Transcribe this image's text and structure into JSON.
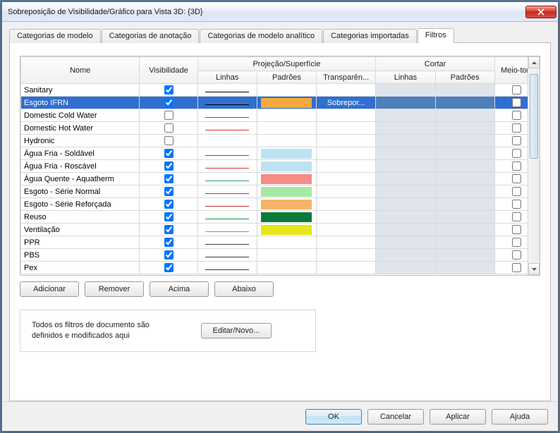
{
  "window": {
    "title": "Sobreposição de Visibilidade/Gráfico para Vista 3D: {3D}"
  },
  "tabs": {
    "items": [
      "Categorias de modelo",
      "Categorias de anotação",
      "Categorias de modelo analítico",
      "Categorias importadas",
      "Filtros"
    ],
    "active_index": 4
  },
  "headers": {
    "name": "Nome",
    "visibility": "Visibilidade",
    "projection_group": "Projeção/Superfície",
    "cut_group": "Cortar",
    "lines": "Linhas",
    "patterns": "Padrões",
    "transparency": "Transparên...",
    "halftone": "Meio-tom"
  },
  "selected_transparency_label": "Sobrepor...",
  "rows": [
    {
      "name": "Sanitary",
      "visible": true,
      "line_color": "#000000",
      "pattern_color": null,
      "selected": false
    },
    {
      "name": "Esgoto IFRN",
      "visible": true,
      "line_color": "#000000",
      "pattern_color": "#f5a93c",
      "selected": true
    },
    {
      "name": "Domestic Cold Water",
      "visible": false,
      "line_color": "#1e62d0",
      "pattern_color": null,
      "selected": false
    },
    {
      "name": "Domestic Hot Water",
      "visible": false,
      "line_color": "#d43b2e",
      "pattern_color": null,
      "selected": false
    },
    {
      "name": "Hydronic",
      "visible": false,
      "line_color": null,
      "pattern_color": null,
      "selected": false
    },
    {
      "name": "Água Fria - Soldável",
      "visible": true,
      "line_color": "#1e62d0",
      "pattern_color": "#bde3f2",
      "selected": false
    },
    {
      "name": "Água Fria - Roscável",
      "visible": true,
      "line_color": "#d43b2e",
      "pattern_color": "#bde3f2",
      "selected": false
    },
    {
      "name": "Água Quente - Aquatherm",
      "visible": true,
      "line_color": "#2f9e5a",
      "pattern_color": "#f58c86",
      "selected": false
    },
    {
      "name": "Esgoto - Série Normal",
      "visible": true,
      "line_color": "#6a3fb5",
      "pattern_color": "#a6e9a6",
      "selected": false
    },
    {
      "name": "Esgoto - Série Reforçada",
      "visible": true,
      "line_color": "#c02f2f",
      "pattern_color": "#f5b466",
      "selected": false
    },
    {
      "name": "Reuso",
      "visible": true,
      "line_color": "#129649",
      "pattern_color": "#0a7a3a",
      "selected": false
    },
    {
      "name": "Ventilação",
      "visible": true,
      "line_color": "#2fb6d9",
      "pattern_color": "#e6e61a",
      "selected": false
    },
    {
      "name": "PPR",
      "visible": true,
      "line_color": "#3a3a3a",
      "pattern_color": null,
      "selected": false
    },
    {
      "name": "PBS",
      "visible": true,
      "line_color": "#3a3a3a",
      "pattern_color": null,
      "selected": false
    },
    {
      "name": "Pex",
      "visible": true,
      "line_color": "#3a3a3a",
      "pattern_color": null,
      "selected": false
    }
  ],
  "buttons": {
    "add": "Adicionar",
    "remove": "Remover",
    "up": "Acima",
    "down": "Abaixo",
    "edit_new": "Editar/Novo...",
    "ok": "OK",
    "cancel": "Cancelar",
    "apply": "Aplicar",
    "help": "Ajuda"
  },
  "info_text": "Todos os filtros de documento são definidos e modificados aqui",
  "colors": {
    "selected_row": "#2f6fd0",
    "cut_dim": "#dfe5eb"
  }
}
